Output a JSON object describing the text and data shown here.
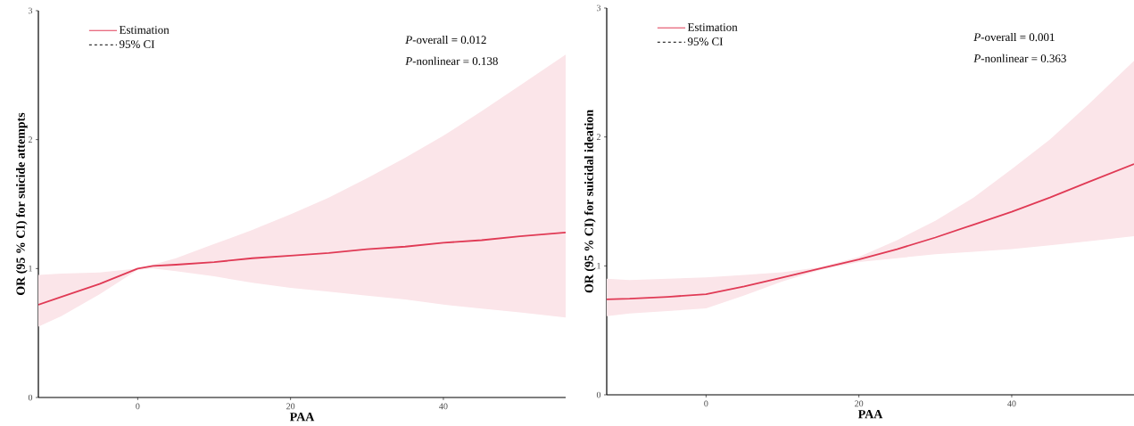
{
  "chart_data": [
    {
      "type": "line",
      "xlabel": "PAA",
      "ylabel": "OR (95 % CI) for suicide attempts",
      "xlim": [
        -13,
        56
      ],
      "ylim": [
        0,
        3
      ],
      "xticks": [
        0,
        20,
        40
      ],
      "yticks": [
        0,
        1,
        2,
        3
      ],
      "legend": "top left",
      "grid": false,
      "annotations": [
        "*P*-overall = 0.012",
        "*P*-nonlinear = 0.138"
      ],
      "series": [
        {
          "name": "Estimation",
          "color": "#e03a55",
          "x": [
            -13,
            -10,
            -5,
            0,
            2,
            5,
            10,
            15,
            20,
            25,
            30,
            35,
            40,
            45,
            50,
            56
          ],
          "values": [
            0.72,
            0.78,
            0.88,
            1.0,
            1.02,
            1.03,
            1.05,
            1.08,
            1.1,
            1.12,
            1.15,
            1.17,
            1.2,
            1.22,
            1.25,
            1.28
          ],
          "lower": [
            0.55,
            0.63,
            0.8,
            0.99,
            1.0,
            0.98,
            0.94,
            0.89,
            0.85,
            0.82,
            0.79,
            0.76,
            0.72,
            0.69,
            0.66,
            0.62
          ],
          "upper": [
            0.95,
            0.96,
            0.97,
            1.0,
            1.03,
            1.08,
            1.19,
            1.3,
            1.42,
            1.55,
            1.7,
            1.86,
            2.03,
            2.22,
            2.42,
            2.66
          ]
        },
        {
          "name": "95% CI",
          "color": "#000000",
          "line_style": "dashed"
        }
      ]
    },
    {
      "type": "line",
      "xlabel": "PAA",
      "ylabel": "OR (95 % CI) for suicidal ideation",
      "xlim": [
        -13,
        56
      ],
      "ylim": [
        0,
        3
      ],
      "xticks": [
        0,
        20,
        40
      ],
      "yticks": [
        0,
        1,
        2,
        3
      ],
      "legend": "top left",
      "grid": false,
      "annotations": [
        "*P*-overall = 0.001",
        "*P*-nonlinear = 0.363"
      ],
      "series": [
        {
          "name": "Estimation",
          "color": "#e03a55",
          "x": [
            -13,
            -10,
            -5,
            0,
            5,
            10,
            15,
            20,
            25,
            30,
            35,
            40,
            45,
            50,
            56
          ],
          "values": [
            0.74,
            0.745,
            0.76,
            0.78,
            0.84,
            0.91,
            0.98,
            1.05,
            1.13,
            1.22,
            1.32,
            1.42,
            1.53,
            1.65,
            1.79
          ],
          "lower": [
            0.61,
            0.63,
            0.65,
            0.67,
            0.77,
            0.88,
            0.97,
            1.03,
            1.06,
            1.09,
            1.11,
            1.13,
            1.16,
            1.19,
            1.23
          ],
          "upper": [
            0.9,
            0.89,
            0.9,
            0.91,
            0.93,
            0.95,
            0.99,
            1.07,
            1.2,
            1.35,
            1.53,
            1.75,
            1.98,
            2.25,
            2.59
          ]
        },
        {
          "name": "95% CI",
          "color": "#000000",
          "line_style": "dashed"
        }
      ]
    }
  ]
}
